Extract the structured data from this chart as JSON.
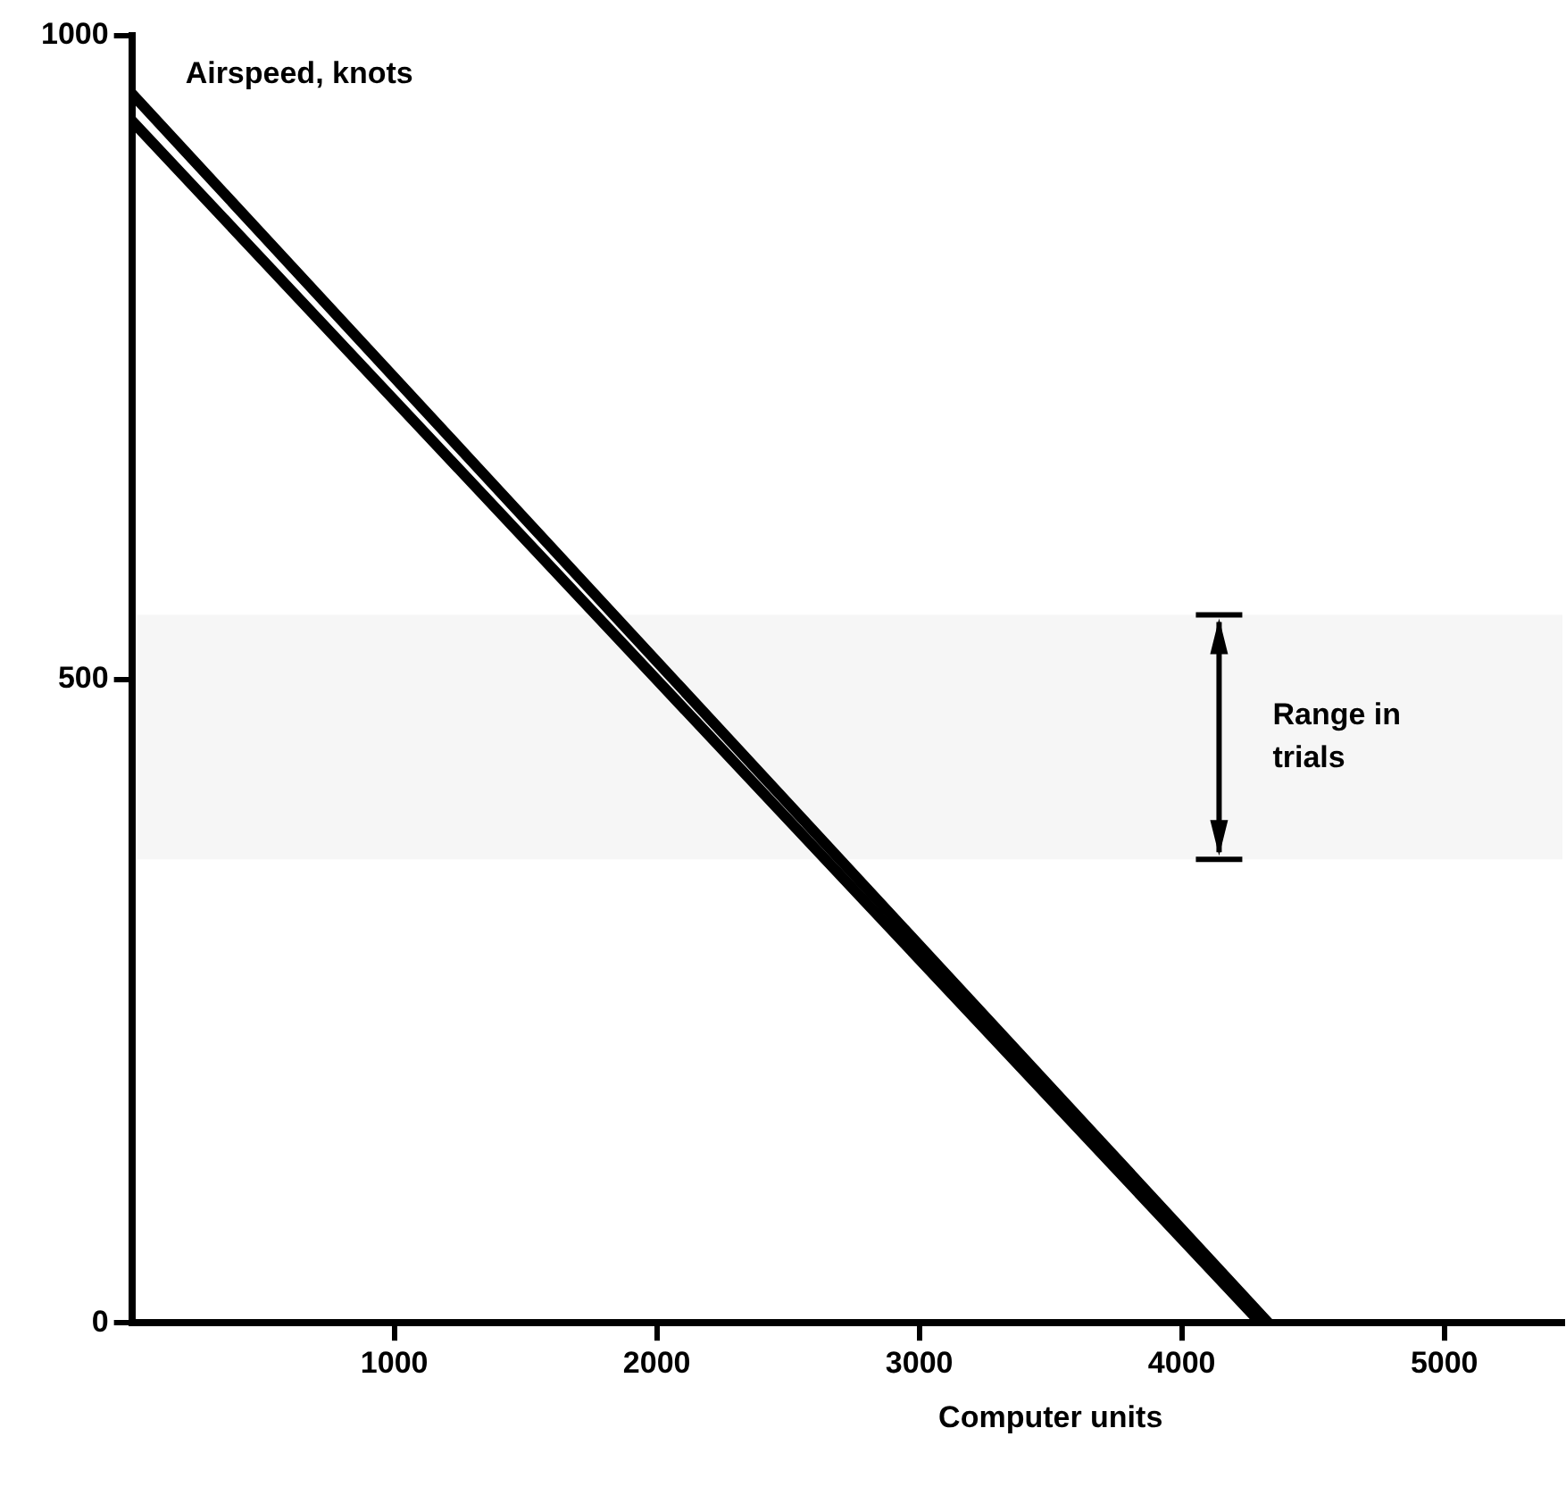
{
  "chart_data": {
    "type": "line",
    "xlabel": "Computer units",
    "ylabel": "Airspeed, knots",
    "xlim": [
      0,
      5450
    ],
    "ylim": [
      0,
      1000
    ],
    "xticks": [
      1000,
      2000,
      3000,
      4000,
      5000
    ],
    "yticks": [
      0,
      500,
      1000
    ],
    "grid": false,
    "legend": false,
    "series": [
      {
        "color": "#000000",
        "x": [
          0,
          4330
        ],
        "values": [
          955,
          0
        ]
      },
      {
        "color": "#000000",
        "x": [
          0,
          4300
        ],
        "values": [
          934,
          0
        ]
      }
    ],
    "bands": [
      {
        "axis": "y",
        "from": 360,
        "to": 550,
        "label": "Range in trials"
      }
    ]
  }
}
